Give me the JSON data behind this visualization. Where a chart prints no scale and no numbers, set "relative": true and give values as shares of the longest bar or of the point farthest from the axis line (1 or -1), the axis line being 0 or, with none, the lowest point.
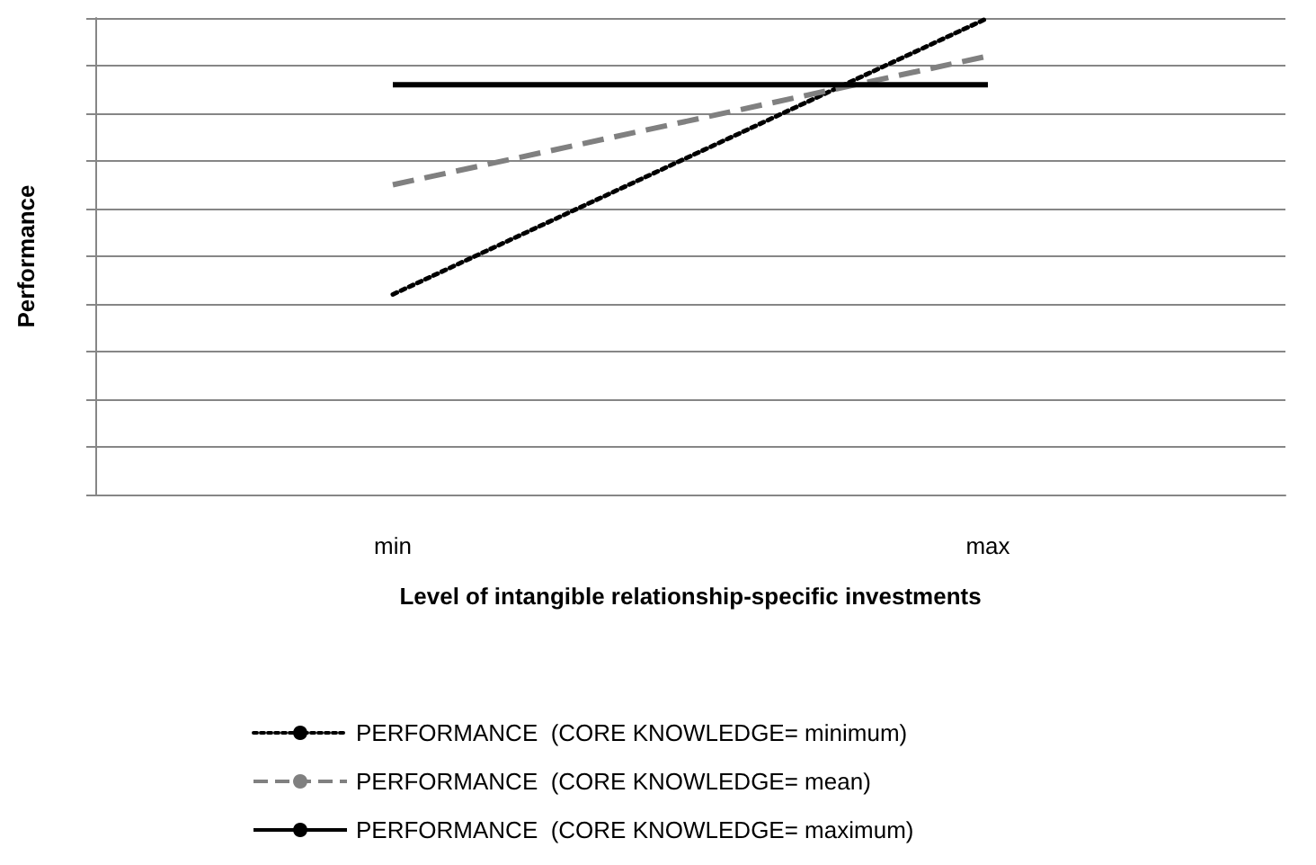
{
  "chart_data": {
    "type": "line",
    "relative": true,
    "xlabel": "Level of intangible relationship-specific investments",
    "ylabel": "Performance",
    "categories": [
      "min",
      "max"
    ],
    "series": [
      {
        "name": "PERFORMANCE  (CORE KNOWLEDGE= minimum)",
        "color": "#000000",
        "line_style": "dotted",
        "values": [
          0.42,
          1
        ]
      },
      {
        "name": "PERFORMANCE  (CORE KNOWLEDGE= mean)",
        "color": "#808080",
        "line_style": "dashed",
        "values": [
          0.65,
          0.92
        ]
      },
      {
        "name": "PERFORMANCE  (CORE KNOWLEDGE= maximum)",
        "color": "#000000",
        "line_style": "solid",
        "values": [
          0.86,
          0.86
        ]
      }
    ],
    "grid": "y",
    "legend": "bottom",
    "marker": "none"
  }
}
